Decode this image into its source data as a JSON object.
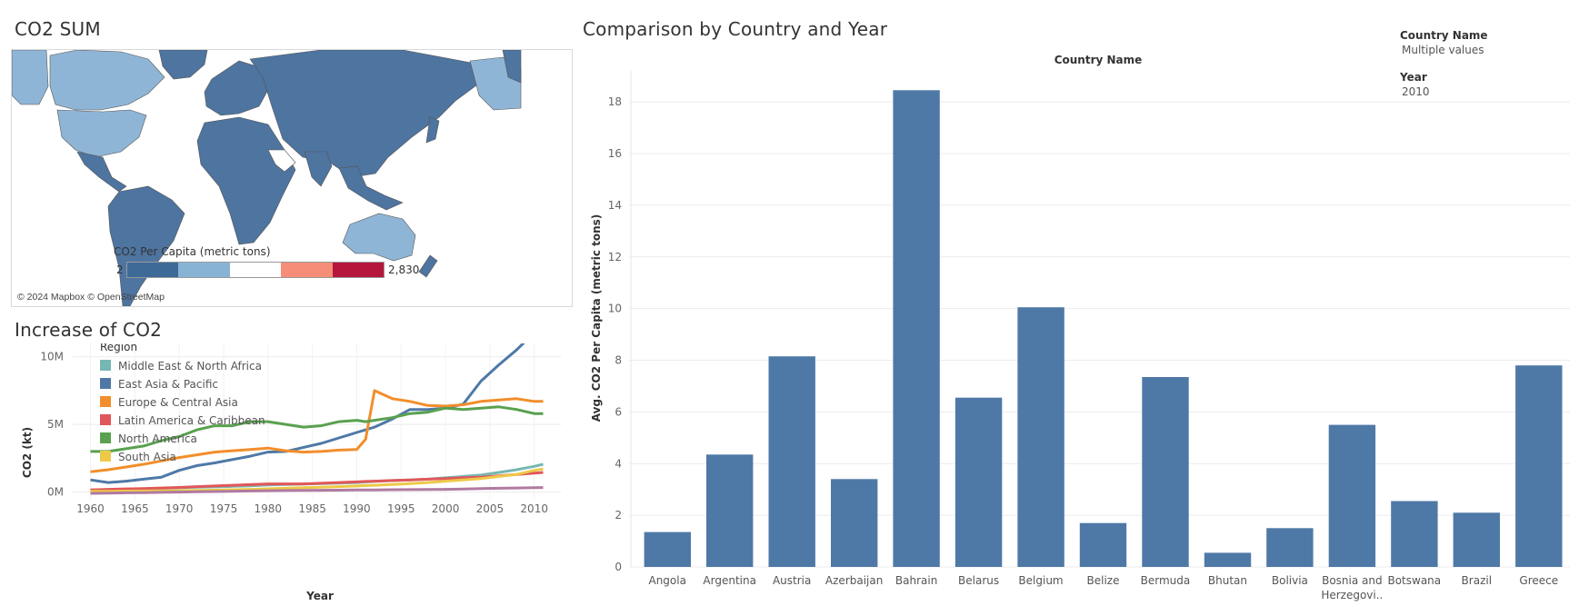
{
  "map_panel": {
    "title": "CO2 SUM",
    "legend_title": "CO2 Per Capita (metric tons)",
    "legend_min": "2",
    "legend_max": "2,830",
    "legend_colors": [
      "#3e6a98",
      "#89b3d4",
      "#ffffff",
      "#f58d78",
      "#b5163c"
    ],
    "credits": "© 2024 Mapbox © OpenStreetMap",
    "land_dark": "#4e74a0",
    "land_light": "#8fb5d6"
  },
  "line_panel": {
    "title": "Increase of CO2",
    "chart_data": {
      "type": "line",
      "xlabel": "Year",
      "ylabel": "CO2 (kt)",
      "legend_title": "Region",
      "x_ticks": [
        "1960",
        "1965",
        "1970",
        "1975",
        "1980",
        "1985",
        "1990",
        "1995",
        "2000",
        "2005",
        "2010"
      ],
      "y_ticks": [
        {
          "v": 0,
          "label": "0M"
        },
        {
          "v": 5000000,
          "label": "5M"
        },
        {
          "v": 10000000,
          "label": "10M"
        }
      ],
      "xlim": [
        1958,
        2013
      ],
      "ylim": [
        -500000,
        13000000
      ],
      "x": [
        1960,
        1962,
        1964,
        1966,
        1968,
        1970,
        1972,
        1974,
        1976,
        1978,
        1980,
        1982,
        1984,
        1986,
        1988,
        1990,
        1991,
        1992,
        1994,
        1996,
        1998,
        2000,
        2002,
        2004,
        2006,
        2008,
        2010,
        2011
      ],
      "series": [
        {
          "name": "Middle East & North Africa",
          "color": "#76b7b2",
          "values": [
            150000,
            180000,
            210000,
            240000,
            270000,
            310000,
            350000,
            380000,
            420000,
            460000,
            520000,
            560000,
            590000,
            620000,
            660000,
            700000,
            740000,
            780000,
            850000,
            900000,
            950000,
            1050000,
            1150000,
            1250000,
            1450000,
            1650000,
            1900000,
            2050000
          ]
        },
        {
          "name": "East Asia & Pacific",
          "color": "#4e79a7",
          "values": [
            900000,
            700000,
            800000,
            950000,
            1100000,
            1600000,
            1950000,
            2150000,
            2400000,
            2650000,
            2950000,
            3000000,
            3300000,
            3600000,
            4000000,
            4400000,
            4600000,
            4800000,
            5400000,
            6100000,
            6100000,
            6200000,
            6500000,
            8200000,
            9400000,
            10500000,
            11800000,
            12700000
          ]
        },
        {
          "name": "Europe & Central Asia",
          "color": "#f28e2b",
          "values": [
            1500000,
            1650000,
            1850000,
            2050000,
            2300000,
            2550000,
            2750000,
            2950000,
            3050000,
            3150000,
            3250000,
            3050000,
            2950000,
            3000000,
            3100000,
            3150000,
            3900000,
            7500000,
            6900000,
            6700000,
            6400000,
            6350000,
            6450000,
            6700000,
            6800000,
            6900000,
            6700000,
            6700000
          ]
        },
        {
          "name": "Latin America & Caribbean",
          "color": "#e15759",
          "values": [
            150000,
            200000,
            230000,
            260000,
            300000,
            340000,
            400000,
            450000,
            500000,
            550000,
            600000,
            600000,
            600000,
            650000,
            700000,
            750000,
            780000,
            800000,
            850000,
            900000,
            950000,
            1000000,
            1050000,
            1100000,
            1200000,
            1300000,
            1400000,
            1450000
          ]
        },
        {
          "name": "North America",
          "color": "#59a14f",
          "values": [
            3000000,
            3000000,
            3200000,
            3400000,
            3800000,
            4100000,
            4600000,
            4900000,
            4900000,
            5200000,
            5200000,
            5000000,
            4800000,
            4900000,
            5200000,
            5300000,
            5200000,
            5300000,
            5500000,
            5800000,
            5900000,
            6200000,
            6100000,
            6200000,
            6300000,
            6100000,
            5800000,
            5800000
          ]
        },
        {
          "name": "South Asia",
          "color": "#edc948",
          "values": [
            50000,
            60000,
            70000,
            80000,
            90000,
            100000,
            120000,
            140000,
            170000,
            200000,
            240000,
            280000,
            320000,
            360000,
            400000,
            450000,
            480000,
            500000,
            560000,
            620000,
            700000,
            800000,
            900000,
            1000000,
            1150000,
            1300000,
            1600000,
            1700000
          ]
        },
        {
          "name": "",
          "color": "#b07aa1",
          "values": [
            -100000,
            -80000,
            -60000,
            -40000,
            -20000,
            0,
            20000,
            40000,
            60000,
            80000,
            100000,
            110000,
            120000,
            130000,
            140000,
            150000,
            150000,
            160000,
            170000,
            180000,
            190000,
            200000,
            220000,
            250000,
            280000,
            300000,
            320000,
            330000
          ]
        }
      ]
    }
  },
  "bar_panel": {
    "title": "Comparison by Country and Year",
    "header_label": "Country Name",
    "chart_data": {
      "type": "bar",
      "categories": [
        "Angola",
        "Argentina",
        "Austria",
        "Azerbaijan",
        "Bahrain",
        "Belarus",
        "Belgium",
        "Belize",
        "Bermuda",
        "Bhutan",
        "Bolivia",
        "Bosnia and Herzegovi..",
        "Botswana",
        "Brazil",
        "Greece"
      ],
      "values": [
        1.35,
        4.35,
        8.15,
        3.4,
        18.45,
        6.55,
        10.05,
        1.7,
        7.35,
        0.55,
        1.5,
        5.5,
        2.55,
        2.1,
        7.8
      ],
      "ylabel": "Avg. CO2 Per Capita (metric tons)",
      "xlabel": "",
      "ylim": [
        0,
        19.2
      ],
      "y_ticks": [
        0,
        2,
        4,
        6,
        8,
        10,
        12,
        14,
        16,
        18
      ],
      "bar_color": "#4e79a7"
    }
  },
  "filters": [
    {
      "label": "Country Name",
      "value": "Multiple values"
    },
    {
      "label": "Year",
      "value": "2010"
    }
  ]
}
